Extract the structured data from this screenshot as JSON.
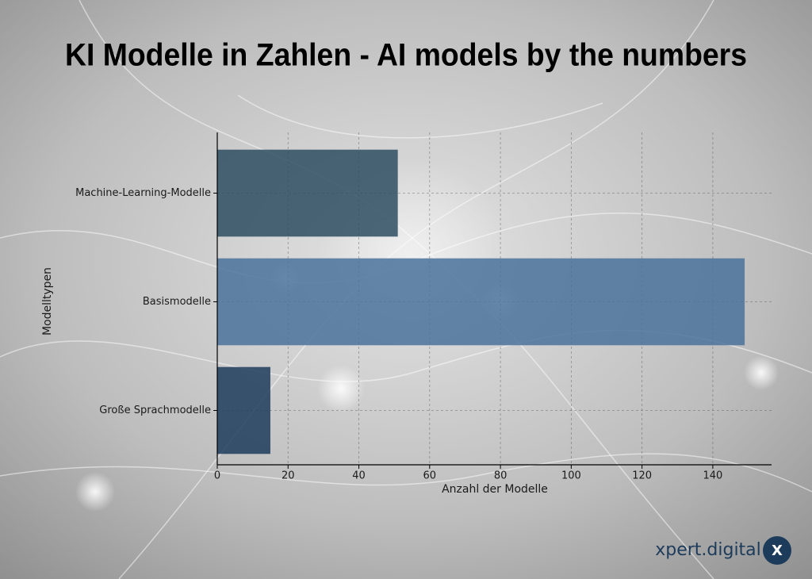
{
  "chart_data": {
    "type": "barh",
    "title": "KI Modelle in Zahlen - AI models by the numbers",
    "x_label": "Anzahl der Modelle",
    "y_label": "Modelltypen",
    "categories": [
      "Machine-Learning-Modelle",
      "Basismodelle",
      "Große Sprachmodelle"
    ],
    "values": [
      51,
      149,
      15
    ],
    "colors": [
      "#2e4d62",
      "#4a729a",
      "#1d3b5a"
    ],
    "xlim": [
      0,
      156.6
    ],
    "xticks": [
      0,
      20,
      40,
      60,
      80,
      100,
      120,
      140
    ],
    "grid": true
  },
  "brand": {
    "name": "xpert.digital",
    "logo": "X"
  }
}
